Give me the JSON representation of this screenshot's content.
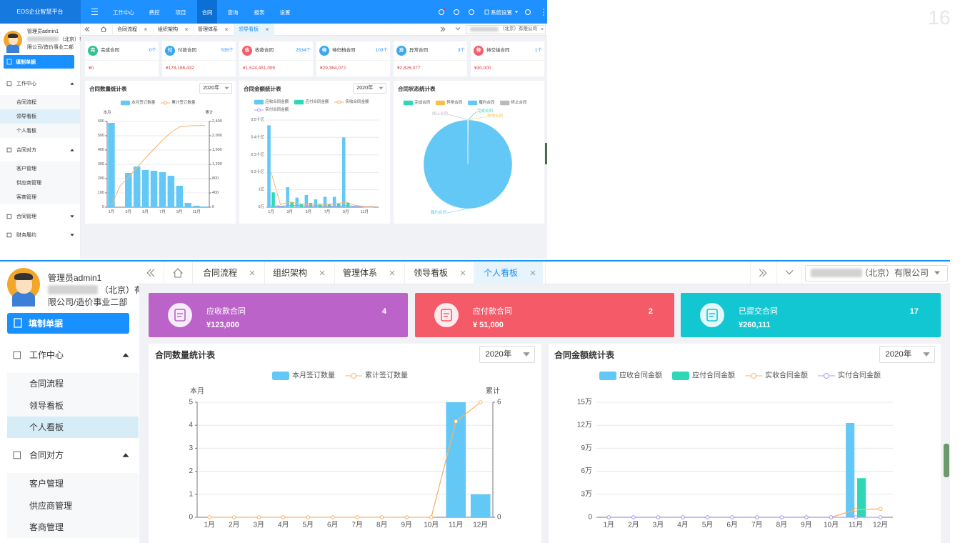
{
  "page_number": "16",
  "top": {
    "header": {
      "brand": "EOS企业智慧平台",
      "nav": [
        {
          "label": "工作中心"
        },
        {
          "label": "费控"
        },
        {
          "label": "项目"
        },
        {
          "label": "合同",
          "active": true
        },
        {
          "label": "查询"
        },
        {
          "label": "报表"
        },
        {
          "label": "设置"
        }
      ],
      "settings": "系统设置"
    },
    "user": {
      "name": "管理员admin1",
      "org_line1": "（北京）有",
      "org_line2": "限公司/造价事业二部"
    },
    "button": "填制单据",
    "menu": [
      {
        "label": "工作中心",
        "items": [
          {
            "label": "合同流程"
          },
          {
            "label": "领导看板",
            "active": true
          },
          {
            "label": "个人看板"
          }
        ]
      },
      {
        "label": "合同对方",
        "items": [
          {
            "label": "客户管理"
          },
          {
            "label": "供应商管理"
          },
          {
            "label": "客商管理"
          }
        ]
      },
      {
        "label": "合同管理"
      },
      {
        "label": "财务履约"
      }
    ],
    "tabs": [
      {
        "label": "合同流程"
      },
      {
        "label": "组织架构"
      },
      {
        "label": "管理体系"
      },
      {
        "label": "领导看板",
        "active": true
      }
    ],
    "company": "（北京）有限公司",
    "stats": [
      {
        "icon": "完",
        "label": "完成合同",
        "count": "0个",
        "amount": "¥0",
        "color": "#2fc28c"
      },
      {
        "icon": "付",
        "label": "付款合同",
        "count": "535个",
        "amount": "¥178,186,432",
        "color": "#3aa8f0"
      },
      {
        "icon": "收",
        "label": "收款合同",
        "count": "2534个",
        "amount": "¥1,524,451,095",
        "color": "#f25e6a"
      },
      {
        "icon": "待",
        "label": "待归档合同",
        "count": "103个",
        "amount": "¥29,364,072",
        "color": "#3aa8f0"
      },
      {
        "icon": "异",
        "label": "异常合同",
        "count": "3个",
        "amount": "¥2,826,377",
        "color": "#3aa8f0"
      },
      {
        "icon": "待",
        "label": "待交接合同",
        "count": "1个",
        "amount": "¥30,000",
        "color": "#f25e6a"
      }
    ]
  },
  "bottom": {
    "user": {
      "name": "管理员admin1",
      "org_line1": "（北京）有",
      "org_line2": "限公司/造价事业二部"
    },
    "button": "填制单据",
    "menu": [
      {
        "label": "工作中心",
        "items": [
          {
            "label": "合同流程"
          },
          {
            "label": "领导看板"
          },
          {
            "label": "个人看板",
            "active": true
          }
        ]
      },
      {
        "label": "合同对方",
        "items": [
          {
            "label": "客户管理"
          },
          {
            "label": "供应商管理"
          },
          {
            "label": "客商管理"
          }
        ]
      }
    ],
    "tabs": [
      {
        "label": "合同流程"
      },
      {
        "label": "组织架构"
      },
      {
        "label": "管理体系"
      },
      {
        "label": "领导看板"
      },
      {
        "label": "个人看板",
        "active": true
      }
    ],
    "company": "（北京）有限公司",
    "cards": [
      {
        "label": "应收款合同",
        "count": 4,
        "amount": "¥123,000",
        "color": "#bb63c9"
      },
      {
        "label": "应付款合同",
        "count": 2,
        "amount": "¥ 51,000",
        "color": "#f55a68"
      },
      {
        "label": "已提交合同",
        "count": 17,
        "amount": "¥260,111",
        "color": "#12c6d2"
      }
    ]
  },
  "chart_data": [
    {
      "type": "bar",
      "title": "合同数量统计表",
      "select": "2020年",
      "ylabel": "本月",
      "y2label": "累计",
      "categories": [
        "1月",
        null,
        "3月",
        null,
        "5月",
        null,
        "7月",
        null,
        "9月",
        null,
        "11月",
        null
      ],
      "series": [
        {
          "name": "本月签订数量",
          "color": "#64c8f6",
          "values": [
            590,
            0,
            240,
            285,
            260,
            255,
            245,
            220,
            150,
            30,
            10,
            5
          ]
        },
        {
          "name": "累计签订数量",
          "color": "#f7b36b",
          "type": "line",
          "axis": "y2",
          "values": [
            40,
            590,
            830,
            1115,
            1375,
            1630,
            1875,
            2095,
            2245,
            2275,
            2285,
            2290
          ]
        }
      ],
      "ylim": [
        0,
        600
      ],
      "yticks": [
        0,
        100,
        200,
        300,
        400,
        500,
        600
      ],
      "y2lim": [
        0,
        2400
      ],
      "y2ticks": [
        0,
        400,
        800,
        {
          "value": 1200,
          "label": "1,200"
        },
        {
          "value": 1600,
          "label": "1,600"
        },
        {
          "value": 2000,
          "label": "2,000"
        },
        {
          "value": 2400,
          "label": "2,400"
        }
      ],
      "grid": true
    },
    {
      "type": "bar",
      "title": "合同金额统计表",
      "select": "2020年",
      "categories": [
        "1月",
        null,
        "3月",
        null,
        "5月",
        null,
        "7月",
        null,
        "9月",
        null,
        "11月",
        null
      ],
      "series": [
        {
          "name": "应收合同金额",
          "color": "#64c8f6",
          "values": [
            4.7,
            0.1,
            1.15,
            0.55,
            0.7,
            0.45,
            0.6,
            0.6,
            4.0,
            0.05,
            0,
            0
          ]
        },
        {
          "name": "应付合同金额",
          "color": "#2ed8b6",
          "values": [
            0.85,
            0.05,
            0.3,
            0.2,
            0.25,
            0.15,
            0.2,
            0.2,
            0.25,
            0.05,
            0,
            0
          ]
        },
        {
          "name": "实收合同金额",
          "color": "#f7b36b",
          "type": "line",
          "values": [
            2.0,
            0.15,
            0.3,
            0.2,
            0.15,
            0.2,
            0.15,
            0.2,
            0.3,
            0.1,
            0.05,
            0.05
          ]
        },
        {
          "name": "实付合同金额",
          "color": "#a99df5",
          "type": "line",
          "values": [
            0.1,
            0.05,
            0.1,
            0.1,
            0.05,
            0.1,
            0.05,
            0.05,
            0.1,
            0.05,
            0,
            0
          ]
        }
      ],
      "ylim": [
        0,
        5
      ],
      "yticks": [
        {
          "value": 0,
          "label": "0万"
        },
        {
          "value": 1,
          "label": "1亿"
        },
        {
          "value": 2,
          "label": "0.2十亿"
        },
        {
          "value": 3,
          "label": "0.3十亿"
        },
        {
          "value": 4,
          "label": "0.4十亿"
        },
        {
          "value": 5,
          "label": "0.5十亿"
        }
      ],
      "grid": true
    },
    {
      "type": "pie",
      "title": "合同状态统计表",
      "categories": [
        "完成合同",
        "异常合同",
        "履约合同",
        "终止合同"
      ],
      "colors": [
        "#2ed8b6",
        "#f7c04b",
        "#64c8f6",
        "#bbbbbb"
      ],
      "values": [
        0.1,
        0.1,
        99.7,
        0.1
      ]
    },
    {
      "type": "bar",
      "title": "合同数量统计表",
      "select": "2020年",
      "ylabel": "本月",
      "y2label": "累计",
      "categories": [
        "1月",
        "2月",
        "3月",
        "4月",
        "5月",
        "6月",
        "7月",
        "8月",
        "9月",
        "10月",
        "11月",
        "12月"
      ],
      "series": [
        {
          "name": "本月签订数量",
          "color": "#64c8f6",
          "values": [
            0,
            0,
            0,
            0,
            0,
            0,
            0,
            0,
            0,
            0,
            5,
            1
          ]
        },
        {
          "name": "累计签订数量",
          "color": "#f7b36b",
          "type": "line",
          "axis": "y2",
          "values": [
            0,
            0,
            0,
            0,
            0,
            0,
            0,
            0,
            0,
            0,
            5,
            6
          ]
        }
      ],
      "ylim": [
        0,
        5
      ],
      "yticks": [
        0,
        1,
        2,
        3,
        4,
        5
      ],
      "y2lim": [
        0,
        6
      ],
      "y2ticks": [
        0,
        6
      ],
      "grid": true
    },
    {
      "type": "bar",
      "title": "合同金额统计表",
      "select": "2020年",
      "categories": [
        "1月",
        "2月",
        "3月",
        "4月",
        "5月",
        "6月",
        "7月",
        "8月",
        "9月",
        "10月",
        "11月",
        "12月"
      ],
      "series": [
        {
          "name": "应收合同金额",
          "color": "#64c8f6",
          "values": [
            0,
            0,
            0,
            0,
            0,
            0,
            0,
            0,
            0,
            0,
            12.3,
            0
          ]
        },
        {
          "name": "应付合同金额",
          "color": "#2ed8b6",
          "values": [
            0,
            0,
            0,
            0,
            0,
            0,
            0,
            0,
            0,
            0,
            5.1,
            0
          ]
        },
        {
          "name": "实收合同金额",
          "color": "#f7b36b",
          "type": "line",
          "values": [
            0,
            0,
            0,
            0,
            0,
            0,
            0,
            0,
            0,
            0,
            1.0,
            1.1
          ]
        },
        {
          "name": "实付合同金额",
          "color": "#a99df5",
          "type": "line",
          "values": [
            0,
            0,
            0,
            0,
            0,
            0,
            0,
            0,
            0,
            0,
            0,
            0
          ]
        }
      ],
      "ylim": [
        0,
        15
      ],
      "yticks": [
        0,
        {
          "value": 3,
          "label": "3万"
        },
        {
          "value": 6,
          "label": "6万"
        },
        {
          "value": 9,
          "label": "9万"
        },
        {
          "value": 12,
          "label": "12万"
        },
        {
          "value": 15,
          "label": "15万"
        }
      ],
      "grid": true
    }
  ]
}
